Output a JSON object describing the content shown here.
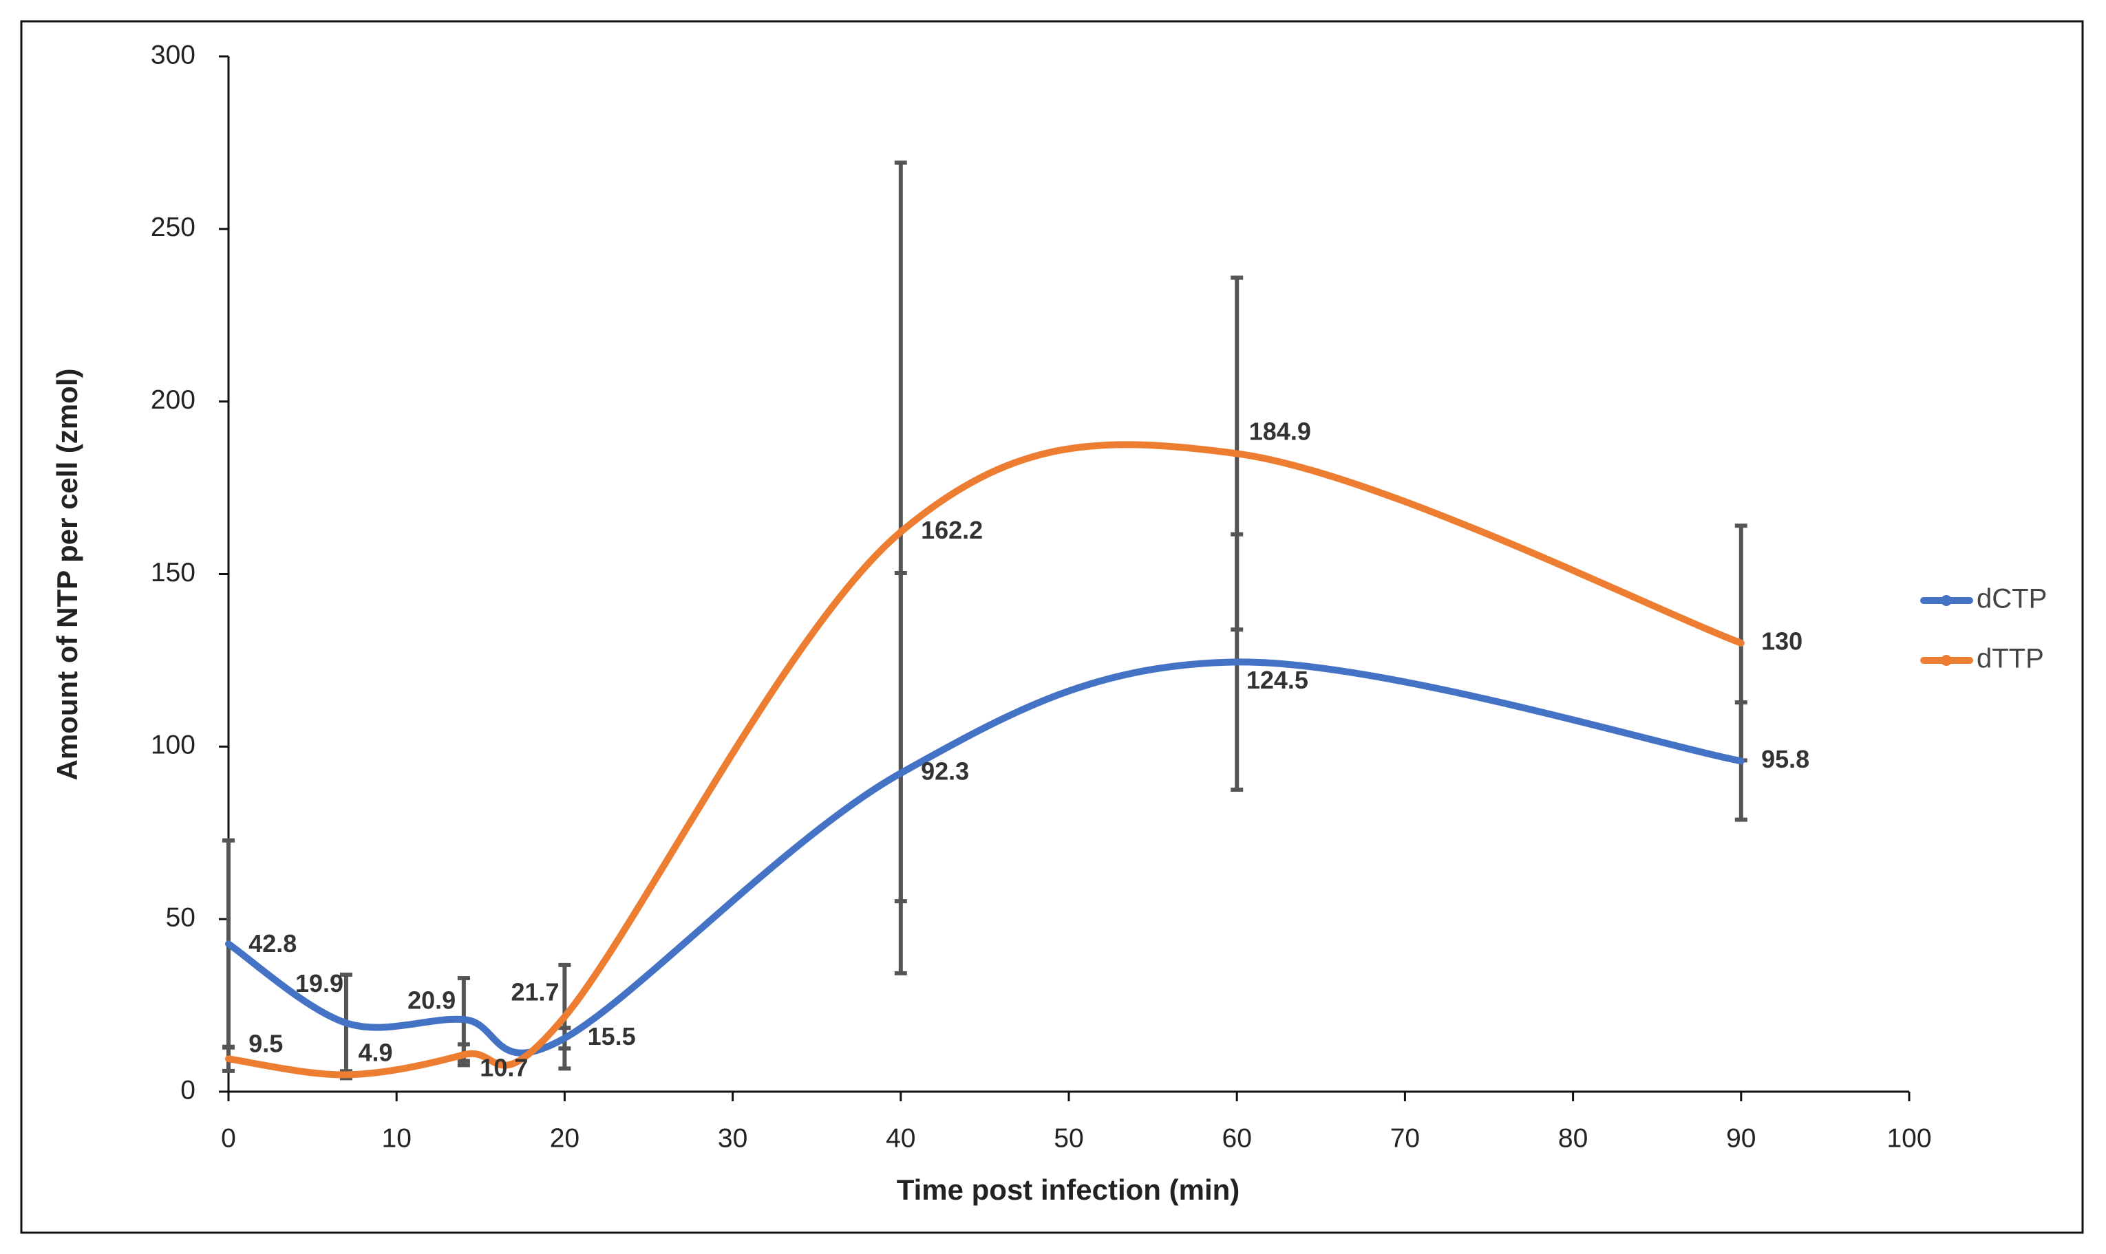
{
  "chart_data": {
    "type": "line",
    "x_label": "Time post infection (min)",
    "y_label": "Amount of NTP per cell (zmol)",
    "x": [
      0,
      7,
      14,
      20,
      40,
      60,
      90
    ],
    "series": [
      {
        "name": "dCTP",
        "color": "#4472c4",
        "values": [
          42.8,
          19.9,
          20.9,
          15.5,
          92.3,
          124.5,
          95.8
        ],
        "errors": [
          30,
          14,
          12,
          3,
          58,
          37,
          17
        ]
      },
      {
        "name": "dTTP",
        "color": "#ed7d31",
        "values": [
          9.5,
          4.9,
          10.7,
          21.7,
          162.2,
          184.9,
          130
        ],
        "errors": [
          3.5,
          1,
          3,
          15,
          107,
          51,
          34
        ]
      }
    ],
    "xlim": [
      0,
      100
    ],
    "xticks": [
      0,
      10,
      20,
      30,
      40,
      50,
      60,
      70,
      80,
      90,
      100
    ],
    "ylim": [
      0,
      300
    ],
    "yticks": [
      0,
      50,
      100,
      150,
      200,
      250,
      300
    ],
    "legend": "right",
    "smooth": true
  }
}
